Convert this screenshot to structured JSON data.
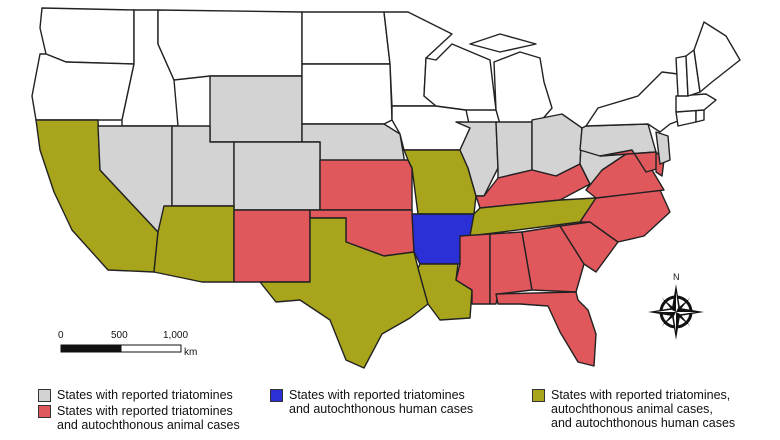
{
  "colors": {
    "triatomines_only": "#d3d3d3",
    "triatomines_animal": "#e0575c",
    "triatomines_human": "#2a2fd6",
    "triatomines_animal_human": "#a8a51c",
    "none": "#ffffff"
  },
  "legend": [
    {
      "key": "triatomines_only",
      "label": "States with reported triatomines"
    },
    {
      "key": "triatomines_animal",
      "label": "States with reported triatomines\nand autochthonous animal cases"
    },
    {
      "key": "triatomines_human",
      "label": "States with reported triatomines\nand autochthonous human cases"
    },
    {
      "key": "triatomines_animal_human",
      "label": "States with reported triatomines,\nautochthonous animal cases,\nand autochthonous human cases"
    }
  ],
  "scale_bar": {
    "ticks": [
      "0",
      "500",
      "1,000"
    ],
    "unit": "km"
  },
  "compass": {
    "north_label": "N"
  },
  "states": [
    {
      "name": "WA",
      "category": "none"
    },
    {
      "name": "OR",
      "category": "none"
    },
    {
      "name": "ID",
      "category": "none"
    },
    {
      "name": "MT",
      "category": "none"
    },
    {
      "name": "WY",
      "category": "triatomines_only"
    },
    {
      "name": "ND",
      "category": "none"
    },
    {
      "name": "SD",
      "category": "none"
    },
    {
      "name": "NE",
      "category": "triatomines_only"
    },
    {
      "name": "MN",
      "category": "none"
    },
    {
      "name": "IA",
      "category": "none"
    },
    {
      "name": "WI",
      "category": "none"
    },
    {
      "name": "MI",
      "category": "none"
    },
    {
      "name": "CA",
      "category": "triatomines_animal_human"
    },
    {
      "name": "NV",
      "category": "triatomines_only"
    },
    {
      "name": "UT",
      "category": "triatomines_only"
    },
    {
      "name": "CO",
      "category": "triatomines_only"
    },
    {
      "name": "AZ",
      "category": "triatomines_animal_human"
    },
    {
      "name": "NM",
      "category": "triatomines_animal"
    },
    {
      "name": "KS",
      "category": "triatomines_animal"
    },
    {
      "name": "OK",
      "category": "triatomines_animal"
    },
    {
      "name": "TX",
      "category": "triatomines_animal_human"
    },
    {
      "name": "MO",
      "category": "triatomines_animal_human"
    },
    {
      "name": "AR",
      "category": "triatomines_human"
    },
    {
      "name": "LA",
      "category": "triatomines_animal_human"
    },
    {
      "name": "IL",
      "category": "triatomines_only"
    },
    {
      "name": "IN",
      "category": "triatomines_only"
    },
    {
      "name": "OH",
      "category": "triatomines_only"
    },
    {
      "name": "KY",
      "category": "triatomines_animal"
    },
    {
      "name": "TN",
      "category": "triatomines_animal_human"
    },
    {
      "name": "MS",
      "category": "triatomines_animal"
    },
    {
      "name": "AL",
      "category": "triatomines_animal"
    },
    {
      "name": "GA",
      "category": "triatomines_animal"
    },
    {
      "name": "FL",
      "category": "triatomines_animal"
    },
    {
      "name": "SC",
      "category": "triatomines_animal"
    },
    {
      "name": "NC",
      "category": "triatomines_animal"
    },
    {
      "name": "VA",
      "category": "triatomines_animal"
    },
    {
      "name": "WV",
      "category": "triatomines_only"
    },
    {
      "name": "PA",
      "category": "triatomines_only"
    },
    {
      "name": "NY",
      "category": "none"
    },
    {
      "name": "MD",
      "category": "triatomines_animal"
    },
    {
      "name": "DE",
      "category": "triatomines_animal"
    },
    {
      "name": "NJ",
      "category": "triatomines_only"
    },
    {
      "name": "CT",
      "category": "none"
    },
    {
      "name": "RI",
      "category": "none"
    },
    {
      "name": "MA",
      "category": "none"
    },
    {
      "name": "VT",
      "category": "none"
    },
    {
      "name": "NH",
      "category": "none"
    },
    {
      "name": "ME",
      "category": "none"
    }
  ]
}
